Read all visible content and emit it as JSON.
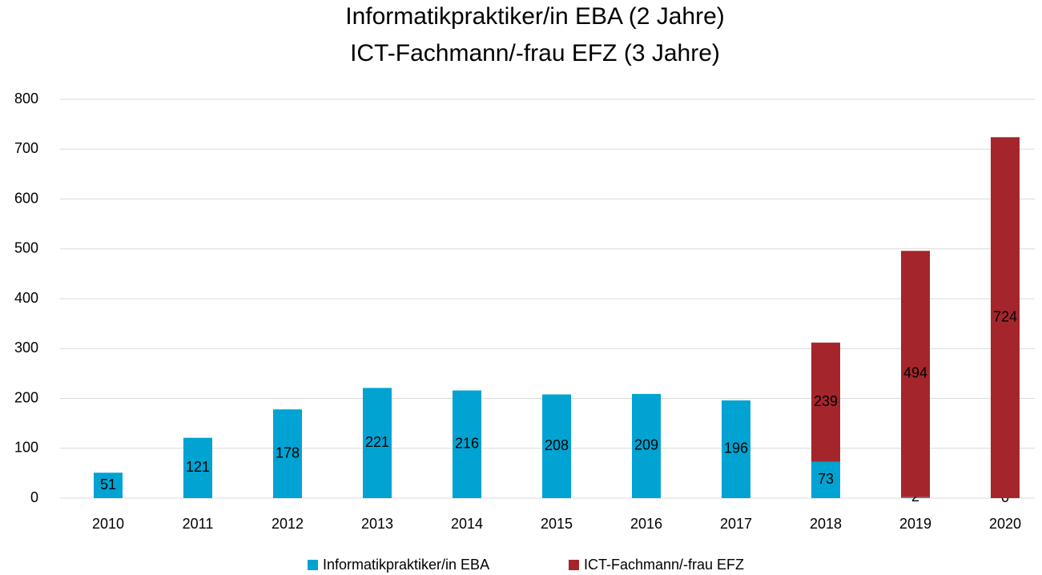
{
  "chart_data": {
    "type": "stacked_bar",
    "title": [
      "Informatikpraktiker/in EBA (2 Jahre)",
      "ICT-Fachmann/-frau EFZ (3 Jahre)"
    ],
    "categories": [
      "2010",
      "2011",
      "2012",
      "2013",
      "2014",
      "2015",
      "2016",
      "2017",
      "2018",
      "2019",
      "2020"
    ],
    "series": [
      {
        "name": "Informatikpraktiker/in EBA",
        "color": "#00a3d2",
        "values": [
          51,
          121,
          178,
          221,
          216,
          208,
          209,
          196,
          73,
          2,
          0
        ]
      },
      {
        "name": "ICT-Fachmann/-frau EFZ",
        "color": "#a4262c",
        "values": [
          null,
          null,
          null,
          null,
          null,
          null,
          null,
          null,
          239,
          494,
          724
        ]
      }
    ],
    "ylim": [
      0,
      800
    ],
    "yticks": [
      0,
      100,
      200,
      300,
      400,
      500,
      600,
      700,
      800
    ],
    "grid": true,
    "legend": "bottom"
  }
}
